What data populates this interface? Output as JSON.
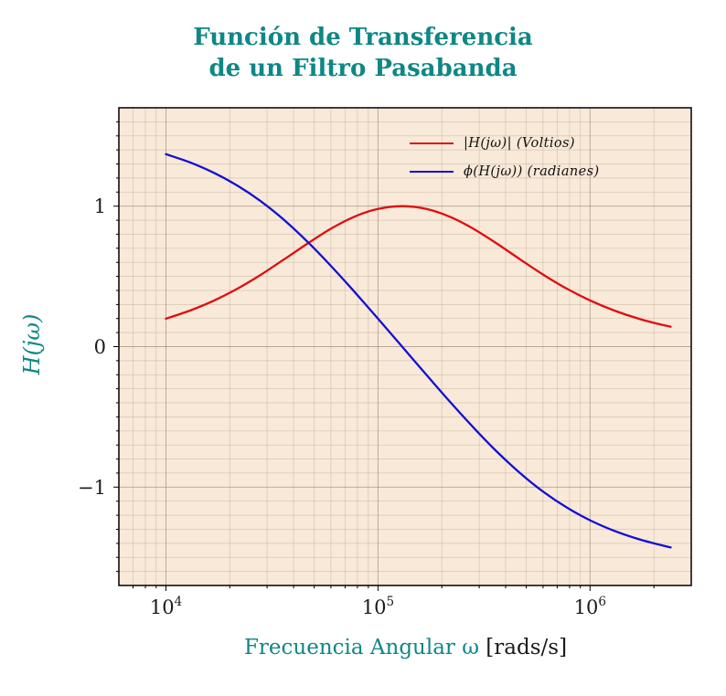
{
  "title": {
    "line1": "Función de Transferencia",
    "line2": "de un Filtro Pasabanda"
  },
  "axes": {
    "x_label_main": "Frecuencia Angular ω",
    "x_label_unit": " [rads/s]",
    "y_label": "H(jω)",
    "x_ticks": [
      {
        "value": 10000,
        "base": "10",
        "exp": "4"
      },
      {
        "value": 100000,
        "base": "10",
        "exp": "5"
      },
      {
        "value": 1000000,
        "base": "10",
        "exp": "6"
      }
    ],
    "y_ticks": [
      {
        "value": 1,
        "label": "1"
      },
      {
        "value": 0,
        "label": "0"
      },
      {
        "value": -1,
        "label": "−1"
      }
    ]
  },
  "legend": [
    {
      "series": "magnitude",
      "label": "|H(jω)| (Voltios)",
      "color": "#e00d12"
    },
    {
      "series": "phase",
      "label": "ϕ(H(jω)) (radianes)",
      "color": "#1111d4"
    }
  ],
  "colors": {
    "accent_teal": "#0e8786",
    "text_dark": "#1a1a1a",
    "plot_bg": "#f8e9d8",
    "grid_minor": "rgba(140,116,92,0.30)",
    "grid_major": "rgba(140,116,92,0.58)",
    "frame": "#000000",
    "magnitude": "#e00d12",
    "phase": "#1111d4"
  },
  "chart_data": {
    "type": "line",
    "title": "Función de Transferencia de un Filtro Pasabanda",
    "xlabel": "Frecuencia Angular ω [rads/s]",
    "ylabel": "H(jω)",
    "x_scale": "log",
    "xlim": [
      6000,
      3000000
    ],
    "ylim": [
      -1.7,
      1.7
    ],
    "grid": true,
    "legend_position": "top-right",
    "x": [
      10000,
      13000,
      17000,
      22000,
      28000,
      36000,
      47000,
      60000,
      78000,
      100000,
      130000,
      170000,
      220000,
      280000,
      360000,
      470000,
      600000,
      780000,
      1000000,
      1300000,
      1700000,
      2200000,
      2400000
    ],
    "series": [
      {
        "name": "|H(jω)| (Voltios)",
        "unit": "Voltios",
        "color": "#e00d12",
        "values": [
          0.199,
          0.257,
          0.33,
          0.417,
          0.511,
          0.62,
          0.738,
          0.839,
          0.927,
          0.98,
          1.0,
          0.979,
          0.922,
          0.841,
          0.738,
          0.619,
          0.513,
          0.411,
          0.329,
          0.257,
          0.198,
          0.154,
          0.142
        ]
      },
      {
        "name": "ϕ(H(jω)) (radianes)",
        "unit": "radianes",
        "color": "#1111d4",
        "values": [
          1.37,
          1.311,
          1.234,
          1.141,
          1.035,
          0.903,
          0.74,
          0.575,
          0.385,
          0.199,
          0.0,
          -0.204,
          -0.397,
          -0.571,
          -0.741,
          -0.903,
          -1.032,
          -1.147,
          -1.236,
          -1.311,
          -1.371,
          -1.416,
          -1.429
        ]
      }
    ]
  }
}
